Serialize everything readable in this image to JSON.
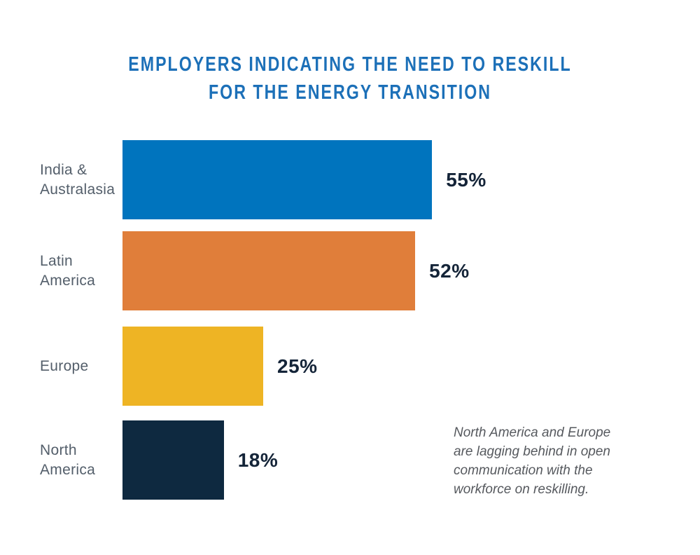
{
  "chart_data": {
    "type": "bar",
    "orientation": "horizontal",
    "title": "EMPLOYERS INDICATING THE NEED TO RESKILL FOR THE ENERGY TRANSITION",
    "title_lines": [
      "EMPLOYERS INDICATING THE NEED TO RESKILL",
      "FOR THE ENERGY TRANSITION"
    ],
    "categories": [
      "India &\nAustralasia",
      "Latin\nAmerica",
      "Europe",
      "North\nAmerica"
    ],
    "values": [
      55,
      52,
      25,
      18
    ],
    "value_labels": [
      "55%",
      "52%",
      "25%",
      "18%"
    ],
    "bar_colors": [
      "#0074BE",
      "#E07E3A",
      "#EEB424",
      "#0E2940"
    ],
    "xlim": [
      0,
      100
    ],
    "xlabel": "",
    "ylabel": "",
    "grid": false,
    "legend": false,
    "annotation": "North America and Europe are lagging behind in open communication with the workforce on reskilling.",
    "colors": {
      "title": "#1C70B8",
      "category_label": "#535E6A",
      "value_label": "#142438",
      "annotation": "#56595E",
      "background": "#FFFFFF"
    }
  }
}
